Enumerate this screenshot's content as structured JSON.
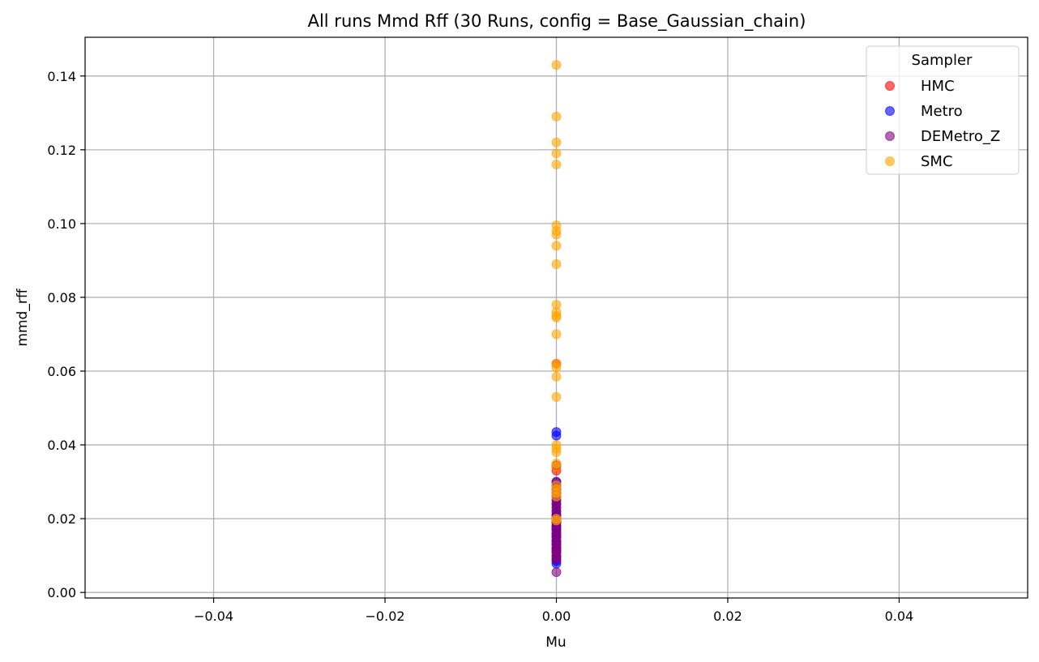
{
  "chart_data": {
    "type": "scatter",
    "title": "All runs Mmd Rff (30 Runs, config = Base_Gaussian_chain)",
    "xlabel": "Mu",
    "ylabel": "mmd_rff",
    "xlim": [
      -0.055,
      0.055
    ],
    "ylim": [
      -0.0015,
      0.1505
    ],
    "x_ticks": [
      -0.04,
      -0.02,
      0.0,
      0.02,
      0.04
    ],
    "x_tick_labels": [
      "−0.04",
      "−0.02",
      "0.00",
      "0.02",
      "0.04"
    ],
    "y_ticks": [
      0.0,
      0.02,
      0.04,
      0.06,
      0.08,
      0.1,
      0.12,
      0.14
    ],
    "y_tick_labels": [
      "0.00",
      "0.02",
      "0.04",
      "0.06",
      "0.08",
      "0.10",
      "0.12",
      "0.14"
    ],
    "grid": true,
    "legend": {
      "title": "Sampler",
      "placement": "top-right"
    },
    "series": [
      {
        "name": "HMC",
        "color": "#ff0000",
        "x": [
          0,
          0,
          0,
          0,
          0,
          0,
          0,
          0,
          0,
          0,
          0,
          0,
          0,
          0,
          0,
          0,
          0,
          0,
          0,
          0
        ],
        "y": [
          0.062,
          0.034,
          0.029,
          0.027,
          0.025,
          0.023,
          0.021,
          0.02,
          0.019,
          0.018,
          0.017,
          0.016,
          0.015,
          0.014,
          0.013,
          0.012,
          0.011,
          0.01,
          0.009,
          0.033
        ]
      },
      {
        "name": "Metro",
        "color": "#0000ff",
        "x": [
          0,
          0,
          0,
          0,
          0,
          0,
          0,
          0,
          0,
          0,
          0,
          0,
          0,
          0,
          0,
          0,
          0,
          0,
          0,
          0
        ],
        "y": [
          0.0435,
          0.0425,
          0.03,
          0.028,
          0.026,
          0.024,
          0.022,
          0.021,
          0.02,
          0.019,
          0.018,
          0.017,
          0.016,
          0.015,
          0.014,
          0.013,
          0.012,
          0.011,
          0.0085,
          0.0078
        ]
      },
      {
        "name": "DEMetro_Z",
        "color": "#800080",
        "x": [
          0,
          0,
          0,
          0,
          0,
          0,
          0,
          0,
          0,
          0,
          0,
          0,
          0,
          0,
          0,
          0,
          0,
          0,
          0,
          0,
          0,
          0,
          0,
          0,
          0,
          0,
          0,
          0,
          0,
          0
        ],
        "y": [
          0.0345,
          0.03,
          0.029,
          0.028,
          0.027,
          0.026,
          0.025,
          0.024,
          0.023,
          0.022,
          0.021,
          0.02,
          0.0195,
          0.019,
          0.018,
          0.0175,
          0.017,
          0.016,
          0.0155,
          0.015,
          0.014,
          0.0135,
          0.013,
          0.012,
          0.0115,
          0.011,
          0.01,
          0.0095,
          0.009,
          0.0055
        ]
      },
      {
        "name": "SMC",
        "color": "#ffa500",
        "x": [
          0,
          0,
          0,
          0,
          0,
          0,
          0,
          0,
          0,
          0,
          0,
          0,
          0,
          0,
          0,
          0,
          0,
          0,
          0,
          0,
          0,
          0,
          0,
          0,
          0,
          0,
          0,
          0,
          0,
          0
        ],
        "y": [
          0.143,
          0.129,
          0.122,
          0.119,
          0.116,
          0.0995,
          0.098,
          0.097,
          0.094,
          0.089,
          0.078,
          0.076,
          0.075,
          0.0745,
          0.07,
          0.062,
          0.061,
          0.0585,
          0.053,
          0.04,
          0.039,
          0.038,
          0.035,
          0.034,
          0.029,
          0.028,
          0.027,
          0.026,
          0.02,
          0.0195
        ]
      }
    ]
  }
}
